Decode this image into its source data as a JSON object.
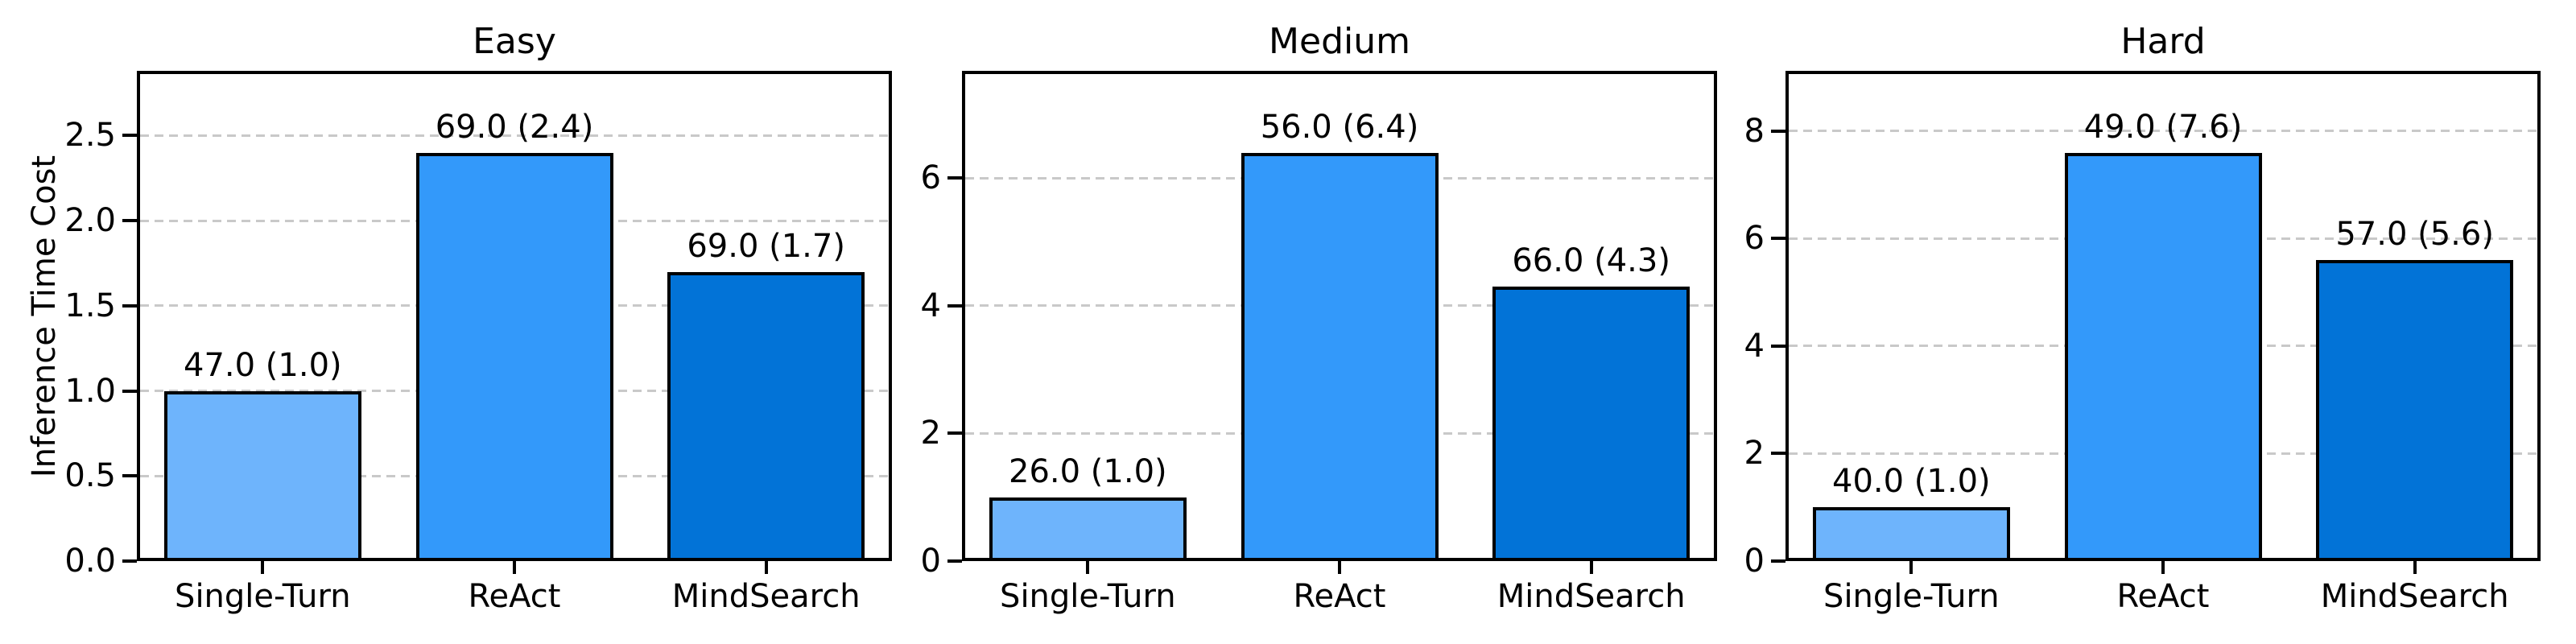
{
  "figure": {
    "ylabel": "Inference Time Cost"
  },
  "style": {
    "bar_colors": [
      "#6EB4FC",
      "#3399FA",
      "#0273D7"
    ],
    "bar_edge_color": "#000000",
    "grid_color": "#c9c9c9",
    "spine_color": "#000000",
    "background": "#ffffff"
  },
  "chart_data": [
    {
      "type": "bar",
      "title": "Easy",
      "ylabel": "Inference Time Cost",
      "categories": [
        "Single-Turn",
        "ReAct",
        "MindSearch"
      ],
      "values": [
        1.0,
        2.4,
        1.7
      ],
      "bar_labels": [
        "47.0 (1.0)",
        "69.0 (2.4)",
        "69.0 (1.7)"
      ],
      "yticks": [
        0,
        0.5,
        1.0,
        1.5,
        2.0,
        2.5
      ],
      "ytick_labels": [
        "0.0",
        "0.5",
        "1.0",
        "1.5",
        "2.0",
        "2.5"
      ],
      "ylim": [
        0,
        2.88
      ],
      "grid": "dashed-horizontal",
      "legend_position": "none"
    },
    {
      "type": "bar",
      "title": "Medium",
      "ylabel": "",
      "categories": [
        "Single-Turn",
        "ReAct",
        "MindSearch"
      ],
      "values": [
        1.0,
        6.4,
        4.3
      ],
      "bar_labels": [
        "26.0 (1.0)",
        "56.0 (6.4)",
        "66.0 (4.3)"
      ],
      "yticks": [
        0,
        2,
        4,
        6
      ],
      "ytick_labels": [
        "0",
        "2",
        "4",
        "6"
      ],
      "ylim": [
        0,
        7.68
      ],
      "grid": "dashed-horizontal",
      "legend_position": "none"
    },
    {
      "type": "bar",
      "title": "Hard",
      "ylabel": "",
      "categories": [
        "Single-Turn",
        "ReAct",
        "MindSearch"
      ],
      "values": [
        1.0,
        7.6,
        5.6
      ],
      "bar_labels": [
        "40.0 (1.0)",
        "49.0 (7.6)",
        "57.0 (5.6)"
      ],
      "yticks": [
        0,
        2,
        4,
        6,
        8
      ],
      "ytick_labels": [
        "0",
        "2",
        "4",
        "6",
        "8"
      ],
      "ylim": [
        0,
        9.12
      ],
      "grid": "dashed-horizontal",
      "legend_position": "none"
    }
  ]
}
